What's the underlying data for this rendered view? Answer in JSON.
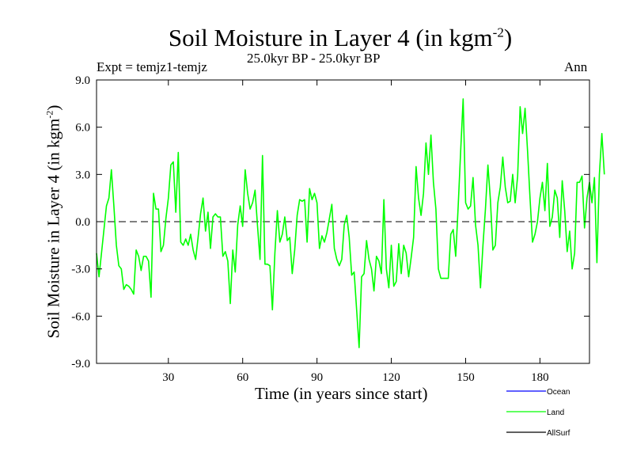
{
  "chart_data": {
    "type": "line",
    "title_main": "Soil Moisture in Layer 4 (in kgm",
    "title_exp": "-2",
    "title_close": ")",
    "subtitle": "25.0kyr BP - 25.0kyr BP",
    "expt_label": "Expt = temjz1-temjz",
    "period_label": "Ann",
    "xlabel": "Time (in years since start)",
    "ylabel_main": "Soil Moisture in Layer 4 (in kgm",
    "ylabel_exp": "-2",
    "ylabel_close": ")",
    "xlim": [
      1,
      200
    ],
    "ylim": [
      -9,
      9
    ],
    "x_ticks": [
      30,
      60,
      90,
      120,
      150,
      180
    ],
    "x_tick_labels": [
      "30",
      "60",
      "90",
      "120",
      "150",
      "180"
    ],
    "y_ticks": [
      -9,
      -6,
      -3,
      0,
      3,
      6,
      9
    ],
    "y_tick_labels": [
      "-9.0",
      "-6.0",
      "-3.0",
      "0.0",
      "3.0",
      "6.0",
      "9.0"
    ],
    "reference_line": 0,
    "legend": [
      {
        "name": "Ocean",
        "color": "#0000ff"
      },
      {
        "name": "Land",
        "color": "#00ff00"
      },
      {
        "name": "AllSurf",
        "color": "#000000"
      }
    ],
    "series": [
      {
        "name": "Land",
        "color": "#00ff00",
        "x_start": 1,
        "x_step": 1,
        "values": [
          -2.0,
          -3.5,
          -2.0,
          -0.5,
          1.0,
          1.5,
          3.3,
          1.0,
          -1.5,
          -2.8,
          -3.0,
          -4.3,
          -4.0,
          -4.1,
          -4.3,
          -4.6,
          -1.8,
          -2.2,
          -3.1,
          -2.2,
          -2.2,
          -2.5,
          -4.8,
          1.8,
          0.8,
          0.8,
          -1.9,
          -1.5,
          0.2,
          1.5,
          3.6,
          3.8,
          0.6,
          4.4,
          -1.3,
          -1.5,
          -1.1,
          -1.5,
          -0.8,
          -1.8,
          -2.4,
          -1.0,
          0.5,
          1.5,
          -0.6,
          0.6,
          -1.7,
          0.3,
          0.5,
          0.3,
          0.3,
          -2.2,
          -1.9,
          -2.5,
          -5.2,
          -1.8,
          -3.2,
          -0.2,
          1.0,
          -0.3,
          3.3,
          1.8,
          0.8,
          1.2,
          2.0,
          -0.3,
          -2.4,
          4.2,
          -2.7,
          -2.7,
          -2.8,
          -5.6,
          -2.0,
          0.7,
          -1.3,
          -0.8,
          0.3,
          -1.2,
          -1.0,
          -3.3,
          -1.8,
          0.4,
          1.4,
          1.3,
          1.4,
          -1.3,
          2.1,
          1.4,
          1.8,
          1.2,
          -1.7,
          -0.9,
          -1.3,
          -0.7,
          0.2,
          1.1,
          -1.7,
          -2.4,
          -2.8,
          -2.4,
          -0.2,
          0.4,
          -1.0,
          -3.4,
          -3.2,
          -5.6,
          -8.0,
          -3.5,
          -3.3,
          -1.2,
          -2.4,
          -3.0,
          -4.4,
          -2.2,
          -2.5,
          -3.3,
          1.4,
          -3.0,
          -4.2,
          -1.5,
          -4.1,
          -3.8,
          -1.4,
          -3.3,
          -1.5,
          -2.0,
          -3.5,
          -2.3,
          -1.0,
          3.5,
          1.5,
          0.4,
          1.8,
          5.0,
          3.0,
          5.5,
          2.5,
          0.8,
          -3.0,
          -3.6,
          -3.6,
          -3.6,
          -3.6,
          -0.8,
          -0.5,
          -2.2,
          1.0,
          4.5,
          7.8,
          1.2,
          0.8,
          1.0,
          2.8,
          -0.2,
          -1.5,
          -4.2,
          -1.5,
          0.8,
          3.6,
          1.4,
          -1.8,
          -1.5,
          1.2,
          2.2,
          4.1,
          2.2,
          1.2,
          1.3,
          3.0,
          1.2,
          2.9,
          7.3,
          5.6,
          7.2,
          4.5,
          1.5,
          -1.3,
          -0.8,
          0.0,
          1.5,
          2.5,
          0.7,
          3.7,
          -0.3,
          0.3,
          2.0,
          1.5,
          -1.0,
          2.6,
          0.7,
          -1.9,
          -0.6,
          -3.0,
          -2.0,
          2.5,
          2.5,
          2.9,
          -0.4,
          1.5,
          2.5,
          1.2,
          2.8,
          -2.6,
          3.0,
          5.6,
          3.0
        ]
      },
      {
        "name": "Ocean",
        "color": "#0000ff",
        "values": []
      },
      {
        "name": "AllSurf",
        "color": "#000000",
        "values": []
      }
    ]
  }
}
